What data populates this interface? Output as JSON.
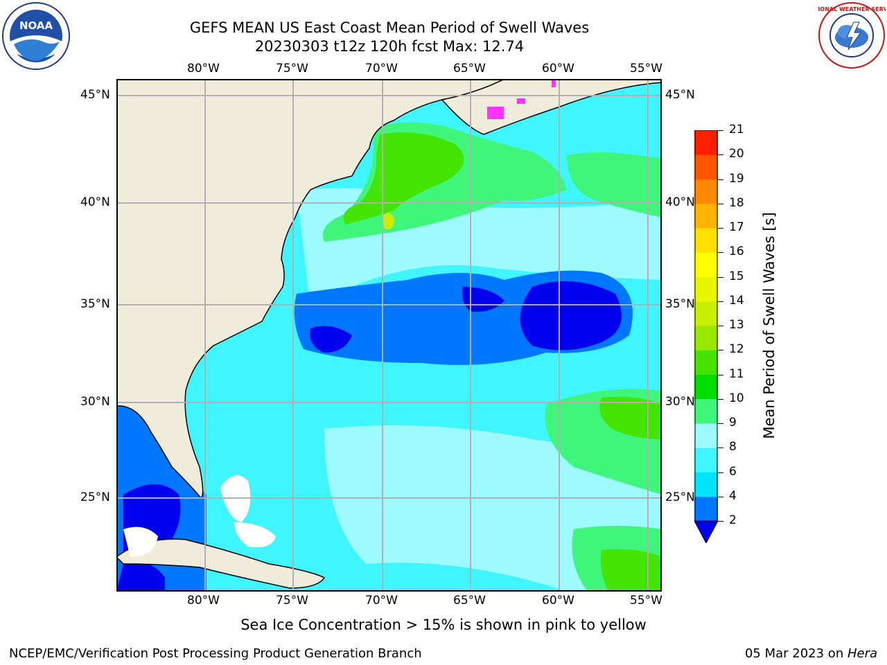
{
  "title": {
    "line1": "GEFS MEAN US East Coast Mean Period of Swell Waves",
    "line2": "20230303 t12z 120h fcst   Max: 12.74"
  },
  "logos": {
    "left_text": "NOAA",
    "right_text": "NATIONAL WEATHER SERVICE"
  },
  "map": {
    "lon_labels": [
      "80°W",
      "75°W",
      "70°W",
      "65°W",
      "60°W",
      "55°W"
    ],
    "lat_labels": [
      "45°N",
      "40°N",
      "35°N",
      "30°N",
      "25°N"
    ],
    "lat_labels_right": [
      "45°N",
      "40°N",
      "35°N",
      "30°N",
      "25°N"
    ],
    "colors": {
      "land": "#efecdc",
      "grid": "#b0b0b0",
      "ice": "#ff33ff"
    }
  },
  "colorbar": {
    "label": "Mean Period of Swell Waves [s]",
    "ticks": [
      "2",
      "4",
      "6",
      "8",
      "9",
      "10",
      "11",
      "12",
      "13",
      "14",
      "15",
      "16",
      "17",
      "18",
      "19",
      "20",
      "21"
    ],
    "colors": [
      "#0077ff",
      "#00e5ff",
      "#3ff5ff",
      "#9dfaff",
      "#3ff57a",
      "#00dd00",
      "#44e300",
      "#99e800",
      "#c8ee00",
      "#eaf500",
      "#ffff00",
      "#ffe000",
      "#ffb400",
      "#ff8800",
      "#ff5400",
      "#ff1e00"
    ],
    "under_color": "#0000ee"
  },
  "note": "Sea Ice Concentration > 15% is shown in pink to yellow",
  "footer": {
    "left": "NCEP/EMC/Verification Post Processing Product Generation Branch",
    "date": "05 Mar 2023 on ",
    "machine": "Hera"
  }
}
